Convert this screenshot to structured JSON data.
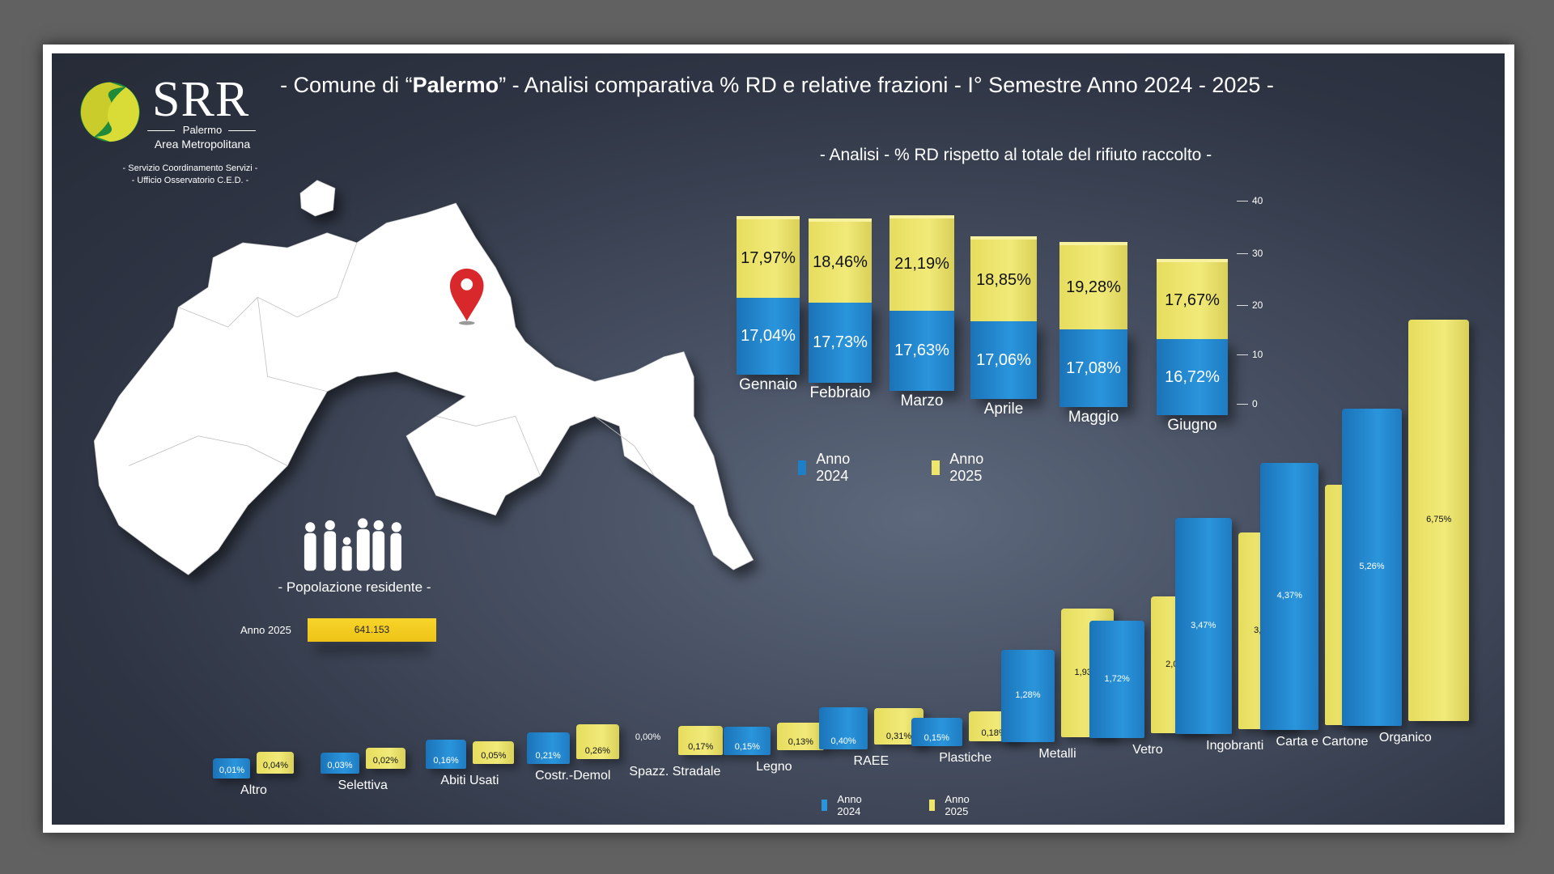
{
  "header": {
    "title_prefix": "- Comune di “",
    "title_city": "Palermo",
    "title_suffix": "” - Analisi comparativa % RD e relative frazioni - I° Semestre Anno 2024 - 2025 -"
  },
  "logo": {
    "text": "SRR",
    "city": "Palermo",
    "area": "Area Metropolitana",
    "service1": "- Servizio Coordinamento Servizi -",
    "service2": "- Ufficio Osservatorio C.E.D. -"
  },
  "population": {
    "label": "- Popolazione residente -",
    "year": "Anno 2025",
    "value": "641.153"
  },
  "colors": {
    "blue": "#2a8fd6",
    "yellow": "#ece46b",
    "pop_bar": "#f2c81a"
  },
  "chart_data": [
    {
      "type": "bar",
      "stacked": true,
      "title": "- Analisi - % RD rispetto al totale del rifiuto raccolto -",
      "categories": [
        "Gennaio",
        "Febbraio",
        "Marzo",
        "Aprile",
        "Maggio",
        "Giugno"
      ],
      "series": [
        {
          "name": "Anno 2024",
          "values": [
            17.04,
            17.73,
            17.63,
            17.06,
            17.08,
            16.72
          ],
          "labels": [
            "17,04%",
            "17,73%",
            "17,63%",
            "17,06%",
            "17,08%",
            "16,72%"
          ]
        },
        {
          "name": "Anno 2025",
          "values": [
            17.97,
            18.46,
            21.19,
            18.85,
            19.28,
            17.67
          ],
          "labels": [
            "17,97%",
            "18,46%",
            "21,19%",
            "18,85%",
            "19,28%",
            "17,67%"
          ]
        }
      ],
      "yticks": [
        "40",
        "30",
        "20",
        "10",
        "0"
      ],
      "ylim": [
        0,
        40
      ],
      "legend": "bottom"
    },
    {
      "type": "bar",
      "title": "",
      "categories": [
        "Altro",
        "Selettiva",
        "Abiti Usati",
        "Costr.-Demol",
        "Spazz. Stradale",
        "Legno",
        "RAEE",
        "Plastiche",
        "Metalli",
        "Vetro",
        "Ingobranti",
        "Carta e Cartone",
        "Organico"
      ],
      "series": [
        {
          "name": "Anno 2024",
          "values": [
            0.01,
            0.03,
            0.16,
            0.21,
            0.0,
            0.15,
            0.4,
            0.15,
            1.28,
            1.72,
            3.47,
            4.37,
            5.26
          ],
          "labels": [
            "0,01%",
            "0,03%",
            "0,16%",
            "0,21%",
            "0,00%",
            "0,15%",
            "0,40%",
            "0,15%",
            "1,28%",
            "1,72%",
            "3,47%",
            "4,37%",
            "5,26%"
          ]
        },
        {
          "name": "Anno 2025",
          "values": [
            0.04,
            0.02,
            0.05,
            0.26,
            0.17,
            0.13,
            0.31,
            0.18,
            1.93,
            2.07,
            3.13,
            3.9,
            6.75
          ],
          "labels": [
            "0,04%",
            "0,02%",
            "0,05%",
            "0,26%",
            "0,17%",
            "0,13%",
            "0,31%",
            "0,18%",
            "1,93%",
            "2,07%",
            "3,13%",
            "3,90%",
            "6,75%"
          ]
        }
      ],
      "legend": "bottom"
    }
  ]
}
